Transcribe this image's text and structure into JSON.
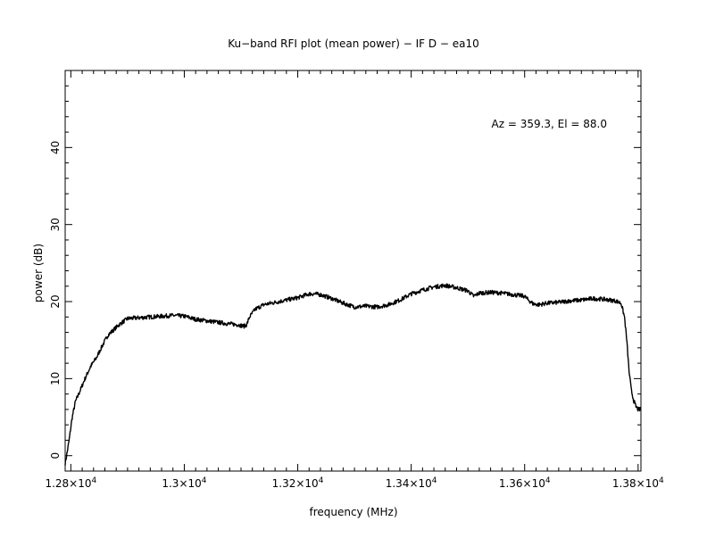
{
  "chart_data": {
    "type": "line",
    "title": "Ku−band RFI plot (mean power) − IF D − ea10",
    "xlabel": "frequency (MHz)",
    "ylabel": "power (dB)",
    "annotation": "Az = 359.3, El = 88.0",
    "xlim": [
      12790,
      13805
    ],
    "ylim": [
      -2,
      50
    ],
    "x_ticks": [
      {
        "value": 12800,
        "mant": "1.28×10",
        "exp": "4"
      },
      {
        "value": 13000,
        "mant": "1.3×10",
        "exp": "4"
      },
      {
        "value": 13200,
        "mant": "1.32×10",
        "exp": "4"
      },
      {
        "value": 13400,
        "mant": "1.34×10",
        "exp": "4"
      },
      {
        "value": 13600,
        "mant": "1.36×10",
        "exp": "4"
      },
      {
        "value": 13800,
        "mant": "1.38×10",
        "exp": "4"
      }
    ],
    "y_ticks": [
      {
        "value": 0,
        "label": "0"
      },
      {
        "value": 10,
        "label": "10"
      },
      {
        "value": 20,
        "label": "20"
      },
      {
        "value": 30,
        "label": "30"
      },
      {
        "value": 40,
        "label": "40"
      }
    ],
    "grid": false,
    "line_color": "#000000",
    "series": [
      {
        "x": [
          12790,
          12793,
          12797,
          12802,
          12808,
          12815,
          12825,
          12835,
          12845,
          12855,
          12865,
          12875,
          12885,
          12900,
          12920,
          12940,
          12960,
          12980,
          13000,
          13020,
          13040,
          13060,
          13080,
          13095,
          13105,
          13110,
          13115,
          13125,
          13140,
          13160,
          13180,
          13200,
          13220,
          13230,
          13240,
          13260,
          13280,
          13300,
          13320,
          13340,
          13360,
          13380,
          13400,
          13420,
          13440,
          13460,
          13480,
          13500,
          13510,
          13520,
          13540,
          13560,
          13580,
          13600,
          13605,
          13615,
          13625,
          13640,
          13660,
          13680,
          13700,
          13720,
          13740,
          13760,
          13770,
          13776,
          13780,
          13784,
          13788,
          13792,
          13796,
          13800,
          13805
        ],
        "values": [
          -1.0,
          0.2,
          2.0,
          4.8,
          7.0,
          8.2,
          10.0,
          11.6,
          12.7,
          14.2,
          15.6,
          16.3,
          17.0,
          17.8,
          17.9,
          18.0,
          18.1,
          18.2,
          18.1,
          17.7,
          17.5,
          17.3,
          17.1,
          17.0,
          16.8,
          17.0,
          18.0,
          19.0,
          19.6,
          19.9,
          20.2,
          20.5,
          21.0,
          21.0,
          20.9,
          20.4,
          19.8,
          19.3,
          19.4,
          19.3,
          19.6,
          20.2,
          21.0,
          21.5,
          21.9,
          22.1,
          21.8,
          21.4,
          20.7,
          21.1,
          21.2,
          21.1,
          20.9,
          20.7,
          20.3,
          19.7,
          19.6,
          19.8,
          19.9,
          20.1,
          20.2,
          20.4,
          20.3,
          20.1,
          19.8,
          18.0,
          15.0,
          11.0,
          8.5,
          7.2,
          6.4,
          6.0,
          6.0
        ]
      }
    ]
  }
}
